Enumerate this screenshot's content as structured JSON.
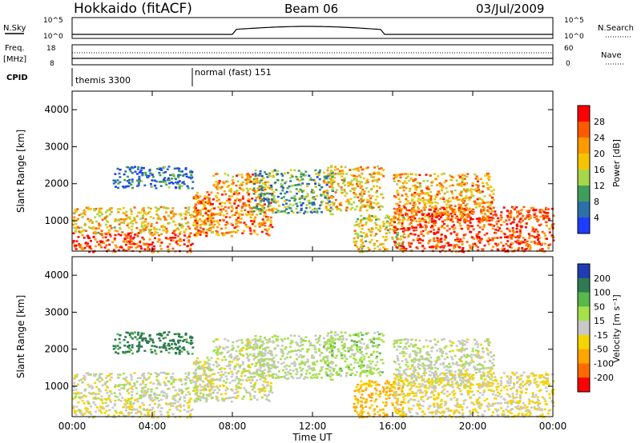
{
  "header": {
    "station": "Hokkaido (fitACF)",
    "beam": "Beam 06",
    "date": "03/Jul/2009"
  },
  "top_panels": {
    "nsky_label": "N.Sky",
    "nsky_ticks": [
      "10^5",
      "10^0"
    ],
    "nsearch_label": "N.Search",
    "nsearch_ticks": [
      "10^5",
      "10^0"
    ],
    "freq_label": "Freq.",
    "freq_unit": "[MHz]",
    "freq_ticks": [
      "18",
      "8"
    ],
    "nave_label": "Nave",
    "nave_ticks": [
      "60",
      "0"
    ],
    "cpid_label": "CPID",
    "cpid_segments": [
      {
        "label": "themis 3300",
        "start_h": 0
      },
      {
        "label": "normal (fast) 151",
        "start_h": 6
      }
    ]
  },
  "power_panel": {
    "ylabel": "Slant Range [km]",
    "colorbar_label": "Power [dB]",
    "colorbar_ticks": [
      "28",
      "24",
      "20",
      "16",
      "12",
      "8",
      "4"
    ],
    "colors": [
      "#ff0000",
      "#ff5a00",
      "#ff9900",
      "#f5c400",
      "#a7d64a",
      "#3f9e5c",
      "#2d6fa8",
      "#1e3cff"
    ]
  },
  "velocity_panel": {
    "ylabel": "Slant Range [km]",
    "colorbar_label": "Velocity [m s⁻¹]",
    "colorbar_ticks": [
      "200",
      "100",
      "50",
      "15",
      "-15",
      "-50",
      "-100",
      "-200"
    ],
    "colors": [
      "#1e3cb4",
      "#2f7a52",
      "#58b84a",
      "#a6e04a",
      "#c8c8c8",
      "#f5d400",
      "#ffa500",
      "#ff6a00",
      "#ff0000"
    ]
  },
  "x_axis": {
    "xlabel": "Time UT",
    "ticks": [
      "00:00",
      "04:00",
      "08:00",
      "12:00",
      "16:00",
      "20:00",
      "00:00"
    ]
  },
  "chart_data": {
    "type": "heatmap",
    "title": "Hokkaido (fitACF)",
    "subtitle": "Beam 06",
    "date": "03/Jul/2009",
    "x": {
      "label": "Time UT",
      "range_hours": [
        0,
        24
      ]
    },
    "y": {
      "label": "Slant Range [km]",
      "range_km": [
        180,
        4500
      ],
      "ticks": [
        1000,
        2000,
        3000,
        4000
      ]
    },
    "power_db_range": [
      0,
      30
    ],
    "velocity_range": [
      -250,
      250
    ],
    "scatter_regions": [
      {
        "t": [
          0,
          6
        ],
        "r": [
          180,
          700
        ],
        "power": 26,
        "vel": -10
      },
      {
        "t": [
          0,
          7
        ],
        "r": [
          700,
          1400
        ],
        "power": 18,
        "vel": 5
      },
      {
        "t": [
          6,
          10
        ],
        "r": [
          600,
          1800
        ],
        "power": 22,
        "vel": 0
      },
      {
        "t": [
          7,
          10
        ],
        "r": [
          1800,
          2300
        ],
        "power": 20,
        "vel": 10
      },
      {
        "t": [
          9,
          13
        ],
        "r": [
          1200,
          2400
        ],
        "power": 10,
        "vel": 20
      },
      {
        "t": [
          12.5,
          15.5
        ],
        "r": [
          1300,
          2500
        ],
        "power": 18,
        "vel": 30
      },
      {
        "t": [
          14,
          16.5
        ],
        "r": [
          180,
          1200
        ],
        "power": 16,
        "vel": -60
      },
      {
        "t": [
          16,
          21
        ],
        "r": [
          1000,
          2300
        ],
        "power": 20,
        "vel": 10
      },
      {
        "t": [
          16,
          24
        ],
        "r": [
          180,
          1400
        ],
        "power": 26,
        "vel": -20
      },
      {
        "t": [
          2,
          6
        ],
        "r": [
          1900,
          2500
        ],
        "power": 6,
        "vel": 120
      }
    ]
  }
}
